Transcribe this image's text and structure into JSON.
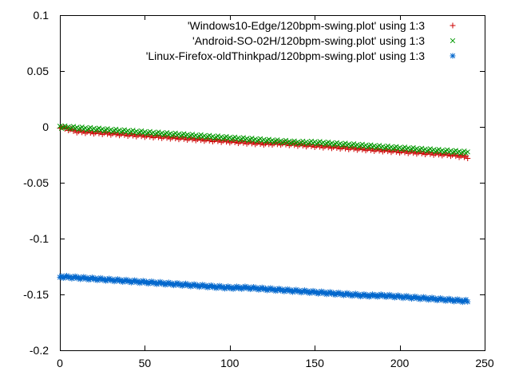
{
  "chart_data": {
    "type": "scatter",
    "title": "",
    "xlabel": "",
    "ylabel": "",
    "xlim": [
      0,
      250
    ],
    "ylim": [
      -0.2,
      0.1
    ],
    "xticks": [
      0,
      50,
      100,
      150,
      200,
      250
    ],
    "yticks": [
      -0.2,
      -0.15,
      -0.1,
      -0.05,
      0,
      0.05,
      0.1
    ],
    "xtick_labels": [
      "0",
      "50",
      "100",
      "150",
      "200",
      "250"
    ],
    "ytick_labels": [
      "-0.2",
      "-0.15",
      "-0.1",
      "-0.05",
      "0",
      "0.05",
      "0.1"
    ],
    "grid": false,
    "legend_position": "top-right",
    "series": [
      {
        "name": "'Windows10-Edge/120bpm-swing.plot' using 1:3",
        "marker": "plus",
        "color": "#cc0000",
        "x": [
          0,
          10,
          20,
          30,
          40,
          50,
          60,
          70,
          80,
          90,
          100,
          110,
          120,
          130,
          140,
          150,
          160,
          170,
          180,
          190,
          200,
          210,
          220,
          230,
          240
        ],
        "y": [
          0,
          -0.004,
          -0.005,
          -0.006,
          -0.007,
          -0.008,
          -0.009,
          -0.01,
          -0.011,
          -0.012,
          -0.013,
          -0.014,
          -0.015,
          -0.015,
          -0.016,
          -0.017,
          -0.018,
          -0.019,
          -0.02,
          -0.021,
          -0.022,
          -0.023,
          -0.024,
          -0.025,
          -0.027
        ]
      },
      {
        "name": "'Android-SO-02H/120bpm-swing.plot' using 1:3",
        "marker": "cross",
        "color": "#009900",
        "x": [
          0,
          10,
          20,
          30,
          40,
          50,
          60,
          70,
          80,
          90,
          100,
          110,
          120,
          130,
          140,
          150,
          160,
          170,
          180,
          190,
          200,
          210,
          220,
          230,
          240
        ],
        "y": [
          0,
          -0.001,
          -0.002,
          -0.003,
          -0.004,
          -0.005,
          -0.006,
          -0.007,
          -0.008,
          -0.009,
          -0.01,
          -0.011,
          -0.012,
          -0.013,
          -0.014,
          -0.014,
          -0.015,
          -0.016,
          -0.017,
          -0.018,
          -0.019,
          -0.02,
          -0.021,
          -0.022,
          -0.023
        ]
      },
      {
        "name": "'Linux-Firefox-oldThinkpad/120bpm-swing.plot' using 1:3",
        "marker": "star",
        "color": "#0066cc",
        "x": [
          0,
          10,
          20,
          30,
          40,
          50,
          60,
          70,
          80,
          90,
          100,
          110,
          120,
          130,
          140,
          150,
          160,
          170,
          180,
          190,
          200,
          210,
          220,
          230,
          240
        ],
        "y": [
          -0.134,
          -0.135,
          -0.136,
          -0.137,
          -0.138,
          -0.139,
          -0.14,
          -0.141,
          -0.142,
          -0.143,
          -0.144,
          -0.144,
          -0.145,
          -0.146,
          -0.147,
          -0.148,
          -0.149,
          -0.15,
          -0.151,
          -0.151,
          -0.152,
          -0.153,
          -0.154,
          -0.155,
          -0.156
        ]
      }
    ]
  }
}
